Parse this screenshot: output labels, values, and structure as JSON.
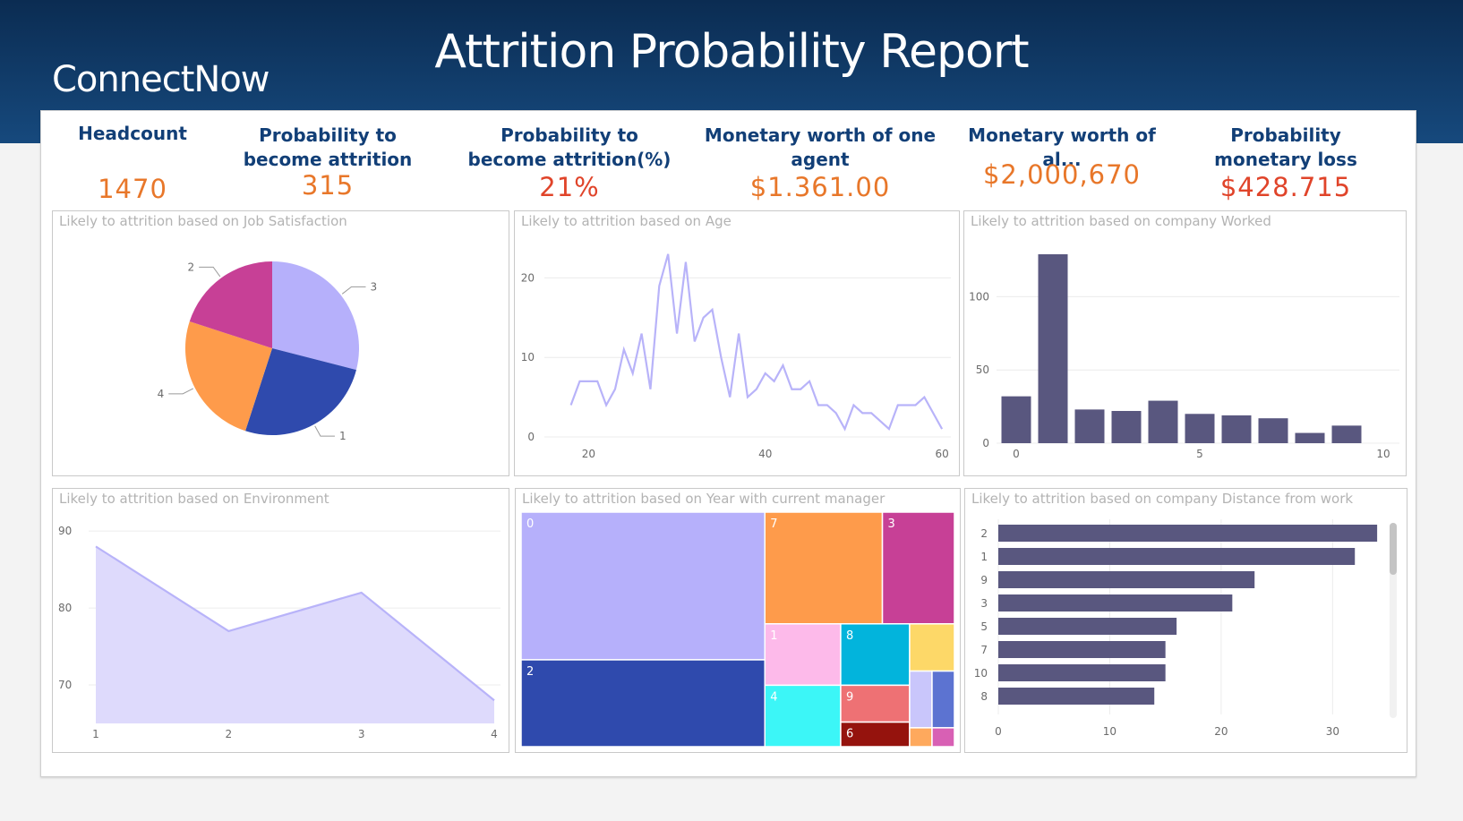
{
  "header": {
    "title": "Attrition Probability Report",
    "brand": "ConnectNow"
  },
  "colors": {
    "header_top": "#0b2c52",
    "header_bottom": "#16497d",
    "kpi_label": "#123f77",
    "kpi_orange": "#e8772a",
    "kpi_red": "#e0442a",
    "bar": "#59577f",
    "line": "#b8b3f9"
  },
  "kpis": [
    {
      "label": "Headcount",
      "value": "1470"
    },
    {
      "label": "Probability to become attrition",
      "value": "315"
    },
    {
      "label": "Probability to become attrition(%)",
      "value": "21%"
    },
    {
      "label": "Monetary worth of one agent",
      "value": "$1.361.00"
    },
    {
      "label": "Monetary worth of al...",
      "value": "$2,000,670"
    },
    {
      "label": "Probability monetary loss",
      "value": "$428.715"
    }
  ],
  "panels": {
    "job_satisfaction": "Likely to attrition based on Job Satisfaction",
    "age": "Likely to attrition based on Age",
    "companies_worked": "Likely to attrition based on company Worked",
    "environment": "Likely to attrition based on Environment",
    "years_manager": "Likely to attrition based on Year with current manager",
    "distance": "Likely to attrition based on company Distance from work"
  },
  "chart_data": [
    {
      "id": "job_satisfaction",
      "type": "pie",
      "slices": [
        {
          "label": "3",
          "value": 29,
          "color": "#b6b0fb"
        },
        {
          "label": "1",
          "value": 26,
          "color": "#2f4aad"
        },
        {
          "label": "4",
          "value": 25,
          "color": "#fe9b4b"
        },
        {
          "label": "2",
          "value": 20,
          "color": "#c74096"
        }
      ]
    },
    {
      "id": "age",
      "type": "line",
      "ylim": [
        0,
        25
      ],
      "yticks": [
        0,
        10,
        20
      ],
      "xticks": [
        20,
        40,
        60
      ],
      "xlim": [
        15,
        61
      ],
      "x": [
        18,
        19,
        20,
        21,
        22,
        23,
        24,
        25,
        26,
        27,
        28,
        29,
        30,
        31,
        32,
        33,
        34,
        35,
        36,
        37,
        38,
        39,
        40,
        41,
        42,
        43,
        44,
        45,
        46,
        47,
        48,
        49,
        50,
        51,
        52,
        53,
        54,
        55,
        56,
        57,
        58,
        59,
        60
      ],
      "y": [
        4,
        7,
        7,
        7,
        4,
        6,
        11,
        8,
        13,
        6,
        19,
        23,
        13,
        22,
        12,
        15,
        16,
        10,
        5,
        13,
        5,
        6,
        8,
        7,
        9,
        6,
        6,
        7,
        4,
        4,
        3,
        1,
        4,
        3,
        3,
        2,
        1,
        4,
        4,
        4,
        5,
        3,
        1
      ]
    },
    {
      "id": "companies_worked",
      "type": "bar",
      "ylim": [
        0,
        140
      ],
      "yticks": [
        0,
        50,
        100
      ],
      "xticks": [
        0,
        5,
        10
      ],
      "x": [
        0,
        1,
        2,
        3,
        4,
        5,
        6,
        7,
        8,
        9
      ],
      "values": [
        32,
        129,
        23,
        22,
        29,
        20,
        19,
        17,
        7,
        12
      ]
    },
    {
      "id": "environment",
      "type": "area",
      "ylim": [
        65,
        92
      ],
      "yticks": [
        70,
        80,
        90
      ],
      "categories": [
        "1",
        "2",
        "3",
        "4"
      ],
      "values": [
        88,
        77,
        82,
        68
      ]
    },
    {
      "id": "years_manager",
      "type": "treemap",
      "items": [
        {
          "label": "0",
          "value": 85,
          "color": "#b6b0fb"
        },
        {
          "label": "2",
          "value": 50,
          "color": "#2f4aad"
        },
        {
          "label": "7",
          "value": 31,
          "color": "#fe9b4b"
        },
        {
          "label": "3",
          "value": 19,
          "color": "#c74096"
        },
        {
          "label": "1",
          "value": 11,
          "color": "#fdbaea"
        },
        {
          "label": "4",
          "value": 11,
          "color": "#3cf6f7"
        },
        {
          "label": "8",
          "value": 10,
          "color": "#02b4dc"
        },
        {
          "label": "9",
          "value": 6,
          "color": "#ee7174"
        },
        {
          "label": "6",
          "value": 4,
          "color": "#95130d"
        },
        {
          "label": "",
          "value": 5,
          "color": "#fdd868"
        },
        {
          "label": "",
          "value": 3,
          "color": "#c9c6fb"
        },
        {
          "label": "",
          "value": 3,
          "color": "#5c73d1"
        },
        {
          "label": "",
          "value": 1,
          "color": "#fea95d"
        },
        {
          "label": "",
          "value": 1,
          "color": "#d860b4"
        }
      ]
    },
    {
      "id": "distance",
      "type": "bar-horizontal",
      "xlim": [
        0,
        36
      ],
      "xticks": [
        0,
        10,
        20,
        30
      ],
      "categories": [
        "2",
        "1",
        "9",
        "3",
        "5",
        "7",
        "10",
        "8"
      ],
      "values": [
        34,
        32,
        23,
        21,
        16,
        15,
        15,
        14
      ]
    }
  ]
}
